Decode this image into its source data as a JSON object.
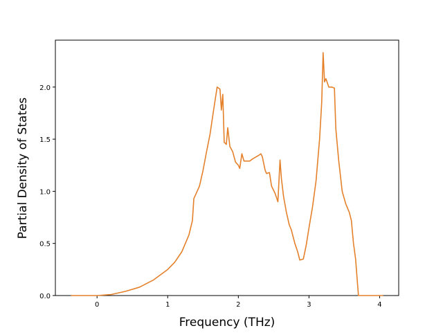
{
  "chart_data": {
    "type": "line",
    "x_label": "Frequency (THz)",
    "y_label": "Partial Density of States",
    "x": [
      -0.37,
      0,
      0.2,
      0.4,
      0.6,
      0.8,
      1.0,
      1.1,
      1.2,
      1.3,
      1.35,
      1.37,
      1.45,
      1.5,
      1.55,
      1.6,
      1.65,
      1.7,
      1.74,
      1.76,
      1.78,
      1.8,
      1.83,
      1.85,
      1.88,
      1.92,
      1.96,
      2.0,
      2.02,
      2.05,
      2.08,
      2.12,
      2.16,
      2.2,
      2.25,
      2.3,
      2.32,
      2.34,
      2.38,
      2.4,
      2.44,
      2.47,
      2.52,
      2.56,
      2.59,
      2.61,
      2.64,
      2.68,
      2.72,
      2.75,
      2.8,
      2.84,
      2.87,
      2.92,
      2.96,
      3.0,
      3.05,
      3.1,
      3.15,
      3.18,
      3.2,
      3.22,
      3.24,
      3.28,
      3.32,
      3.36,
      3.38,
      3.42,
      3.47,
      3.52,
      3.57,
      3.6,
      3.63,
      3.66,
      3.7,
      4.05
    ],
    "series": [
      {
        "color": "#e5802a",
        "values": [
          0,
          0,
          0.01,
          0.04,
          0.08,
          0.15,
          0.25,
          0.32,
          0.42,
          0.58,
          0.72,
          0.93,
          1.05,
          1.2,
          1.38,
          1.55,
          1.78,
          2.0,
          1.98,
          1.78,
          1.93,
          1.47,
          1.45,
          1.61,
          1.43,
          1.38,
          1.28,
          1.25,
          1.22,
          1.36,
          1.29,
          1.29,
          1.29,
          1.31,
          1.33,
          1.35,
          1.36,
          1.33,
          1.2,
          1.17,
          1.18,
          1.05,
          0.98,
          0.9,
          1.3,
          1.12,
          0.95,
          0.8,
          0.68,
          0.63,
          0.5,
          0.42,
          0.34,
          0.35,
          0.48,
          0.65,
          0.85,
          1.1,
          1.5,
          1.85,
          2.33,
          2.05,
          2.08,
          2.0,
          2.0,
          1.99,
          1.6,
          1.3,
          1.0,
          0.88,
          0.8,
          0.72,
          0.5,
          0.35,
          0,
          0
        ]
      }
    ],
    "xlim": [
      -0.59,
      4.27
    ],
    "ylim": [
      0,
      2.45
    ],
    "xticks": [
      0,
      1,
      2,
      3,
      4
    ],
    "yticks": [
      {
        "value": 0,
        "label": "0.0"
      },
      {
        "value": 0.5,
        "label": "0.5"
      },
      {
        "value": 1,
        "label": "1.0"
      },
      {
        "value": 1.5,
        "label": "1.5"
      },
      {
        "value": 2,
        "label": "2.0"
      }
    ]
  }
}
